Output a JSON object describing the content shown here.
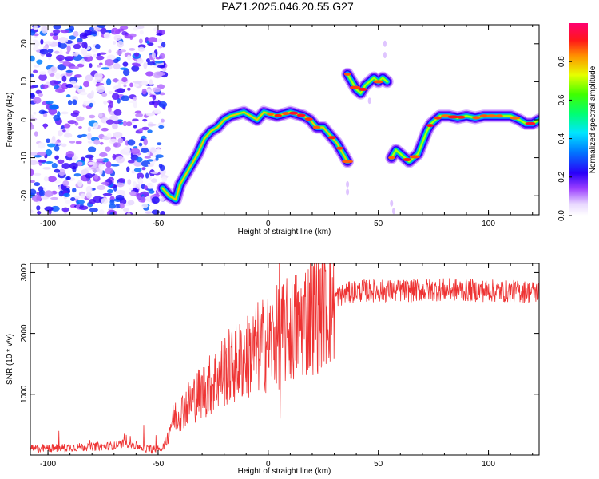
{
  "title": "PAZ1.2025.046.20.55.G27",
  "colors": {
    "snr_line": "#ee3333",
    "track_low": "#2200ee",
    "track_high": "#ff1133",
    "noise": "#8a3cf0"
  },
  "chart_data": [
    {
      "type": "heatmap",
      "xlabel": "Height of straight line (km)",
      "ylabel": "Frequency (Hz)",
      "xlim": [
        -108,
        123
      ],
      "ylim": [
        -25,
        25
      ],
      "xticks": [
        -100,
        -50,
        0,
        50,
        100
      ],
      "yticks": [
        -20,
        -10,
        0,
        10,
        20
      ],
      "colorbar": {
        "label": "Normalized spectral amplitude",
        "range": [
          0,
          1
        ],
        "ticks": [
          0.0,
          0.2,
          0.4,
          0.6,
          0.8
        ],
        "tick_labels": [
          "0.0",
          "0.2",
          "0.4",
          "0.6",
          "0.8"
        ],
        "colormap": "rainbow (white-purple-blue-cyan-green-yellow-red-magenta)"
      },
      "ridge": {
        "description": "frequency of the dominant spectral peak vs height",
        "segments": [
          {
            "x": [
              -48,
              -45,
              -42,
              -40,
              -37,
              -35,
              -32,
              -29,
              -26,
              -23,
              -20,
              -17,
              -14,
              -11,
              -8,
              -5,
              -2,
              1,
              4,
              7,
              10,
              13,
              16,
              19,
              22,
              25,
              28,
              31,
              33,
              35,
              36
            ],
            "y": [
              -18,
              -20,
              -21,
              -17,
              -14,
              -12,
              -9,
              -5,
              -3,
              -2,
              0,
              1,
              1.5,
              2,
              1,
              0,
              2,
              1.5,
              1,
              1.5,
              2,
              1.5,
              1,
              0,
              -2,
              -2,
              -4,
              -6,
              -8,
              -10,
              -11
            ]
          },
          {
            "x": [
              36,
              38,
              40,
              42,
              44,
              46,
              48,
              50,
              52,
              54
            ],
            "y": [
              12,
              10,
              8,
              7,
              9,
              10,
              11,
              10,
              11,
              10
            ]
          },
          {
            "x": [
              56,
              58,
              60,
              62,
              64,
              66,
              68,
              70,
              72,
              74,
              76,
              78,
              82,
              86,
              90,
              94,
              98,
              102,
              106,
              110,
              114,
              117,
              120,
              123
            ],
            "y": [
              -10,
              -8,
              -9,
              -10,
              -11,
              -10,
              -9,
              -6,
              -3,
              -1,
              0,
              1,
              1,
              0.5,
              1,
              0.5,
              1,
              1,
              1,
              1,
              0,
              -1,
              -1,
              0
            ]
          }
        ],
        "amplitude_note": "ridge amplitude rises from ~0.3 at x=-48 to ~0.9 near x>0"
      },
      "noise_region": {
        "x_range": [
          -108,
          -50
        ],
        "description": "scattered low-amplitude noise"
      }
    },
    {
      "type": "line",
      "xlabel": "Height of straight line (km)",
      "ylabel": "SNR (10 * v/v)",
      "xlim": [
        -108,
        123
      ],
      "ylim": [
        0,
        3150
      ],
      "xticks": [
        -100,
        -50,
        0,
        50,
        100
      ],
      "yticks": [
        1000,
        2000,
        3000
      ],
      "profile": {
        "x": [
          -108,
          -70,
          -65,
          -55,
          -50,
          -48,
          -46,
          -44,
          -42,
          -40,
          -35,
          -30,
          -25,
          -20,
          -15,
          -10,
          -5,
          0,
          5,
          10,
          15,
          20,
          25,
          30,
          35,
          40,
          50,
          60,
          80,
          100,
          123
        ],
        "y": [
          100,
          150,
          200,
          100,
          80,
          120,
          250,
          550,
          650,
          700,
          900,
          1050,
          1200,
          1400,
          1500,
          1600,
          1750,
          1850,
          1950,
          2050,
          2200,
          2350,
          2500,
          2600,
          2650,
          2700,
          2700,
          2700,
          2720,
          2700,
          2680
        ]
      },
      "features": [
        {
          "x": 5,
          "y": 3150,
          "label": "spike"
        },
        {
          "x": 5.4,
          "y": 600,
          "label": "dip"
        }
      ]
    }
  ]
}
